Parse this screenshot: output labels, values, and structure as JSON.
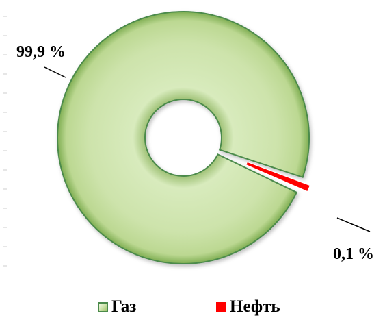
{
  "chart_data": {
    "type": "pie",
    "variant": "doughnut",
    "slices": [
      {
        "name": "Газ",
        "value": 99.9,
        "label": "99,9 %",
        "color": "#cde3ab"
      },
      {
        "name": "Нефть",
        "value": 0.1,
        "label": "0,1 %",
        "color": "#ff0000"
      }
    ],
    "legend_position": "bottom",
    "exploded_slice": "Нефть"
  },
  "legend": {
    "gas_label": "Газ",
    "oil_label": "Нефть"
  },
  "colors": {
    "gas_fill": "#cde3ab",
    "gas_border": "#4b8a4b",
    "oil_fill": "#ff0000"
  }
}
